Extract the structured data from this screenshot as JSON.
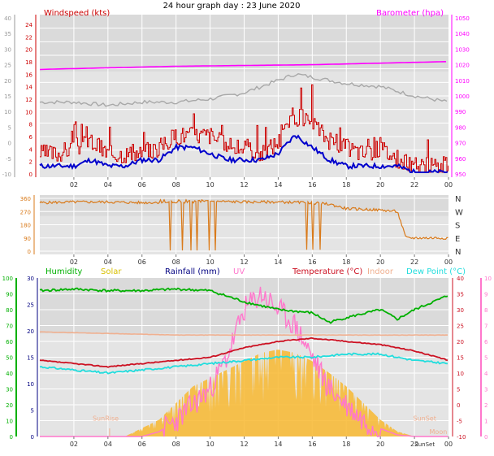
{
  "header": {
    "title": "24 hour graph day : 23 June 2020"
  },
  "colors": {
    "windspeed": "#cc0000",
    "windavg": "#0000cc",
    "barometer": "#ff00ff",
    "gust_grey": "#a8a8a8",
    "direction": "#d97a1a",
    "humidity": "#00b000",
    "solar": "#d8c000",
    "solar_fill": "#f8b830",
    "rainfall": "#000080",
    "uv": "#ff77cc",
    "temperature": "#cc1122",
    "indoor": "#f0b090",
    "dewpoint": "#22dddd",
    "grid_bg": "#e0e0e0"
  },
  "chart_data": [
    {
      "type": "line",
      "title": "24 hour graph day : 23 June 2020",
      "ylabel_left": "Windspeed (kts)",
      "ylabel_right": "Barometer (hpa)",
      "x_ticks": [
        "02",
        "04",
        "06",
        "08",
        "10",
        "12",
        "14",
        "16",
        "18",
        "20",
        "22",
        "00"
      ],
      "y_left_ticks": [
        "40",
        "35",
        "30",
        "25",
        "20",
        "15",
        "10",
        "5",
        "0",
        "-5",
        "-10"
      ],
      "y_left_inner_ticks": [
        "24",
        "22",
        "20",
        "18",
        "16",
        "14",
        "12",
        "10",
        "8",
        "6",
        "4",
        "2",
        "0"
      ],
      "y_right_ticks": [
        "1050",
        "1040",
        "1030",
        "1020",
        "1010",
        "1000",
        "990",
        "980",
        "970",
        "960",
        "950"
      ],
      "ylim_left": [
        0,
        24
      ],
      "ylim_right": [
        950,
        1050
      ],
      "series": [
        {
          "name": "Windspeed (kts)",
          "axis": "left",
          "x": [
            0,
            1,
            2,
            3,
            4,
            5,
            6,
            7,
            8,
            9,
            10,
            11,
            12,
            13,
            14,
            15,
            16,
            17,
            18,
            19,
            20,
            21,
            22,
            23,
            24
          ],
          "values": [
            3,
            3,
            4,
            5,
            3,
            3,
            3,
            4,
            6,
            6,
            6,
            4,
            4,
            3,
            5,
            9,
            8,
            5,
            4,
            3,
            4,
            2,
            1,
            1,
            1
          ]
        },
        {
          "name": "Wind average",
          "axis": "left",
          "x": [
            0,
            1,
            2,
            3,
            4,
            5,
            6,
            7,
            8,
            9,
            10,
            11,
            12,
            13,
            14,
            15,
            16,
            17,
            18,
            19,
            20,
            21,
            22,
            23,
            24
          ],
          "values": [
            1,
            1,
            1,
            2,
            1,
            1,
            2,
            2,
            4,
            4,
            3,
            2,
            2,
            2,
            3,
            6,
            4,
            2,
            1,
            1,
            1,
            1,
            0,
            0,
            0
          ]
        },
        {
          "name": "Barometer (hpa)",
          "axis": "right",
          "x": [
            0,
            4,
            8,
            12,
            16,
            20,
            24
          ],
          "values": [
            1017,
            1018,
            1019,
            1019.5,
            1020,
            1021,
            1022
          ]
        },
        {
          "name": "Wind gust avg",
          "axis": "left_outer",
          "x": [
            0,
            2,
            4,
            6,
            8,
            10,
            12,
            14,
            15,
            16,
            18,
            20,
            22,
            24
          ],
          "values": [
            13,
            13,
            12,
            13,
            13,
            14,
            16,
            20,
            22,
            21,
            19,
            18,
            15,
            13
          ]
        }
      ]
    },
    {
      "type": "line",
      "ylabel_right_ticks": [
        "N",
        "W",
        "S",
        "E",
        "N"
      ],
      "y_left_ticks": [
        "360",
        "270",
        "180",
        "90",
        "0"
      ],
      "x_ticks": [
        "02",
        "04",
        "06",
        "08",
        "10",
        "12",
        "14",
        "16",
        "18",
        "20",
        "22",
        "00"
      ],
      "ylim": [
        0,
        360
      ],
      "series": [
        {
          "name": "Wind direction",
          "x": [
            0,
            2,
            4,
            6,
            8,
            10,
            12,
            14,
            16,
            17,
            18,
            20,
            21,
            21.5,
            22,
            24
          ],
          "values": [
            330,
            335,
            335,
            330,
            335,
            340,
            335,
            335,
            330,
            320,
            290,
            280,
            270,
            90,
            90,
            90
          ]
        }
      ]
    },
    {
      "type": "line",
      "legend": [
        "Humidity",
        "Solar",
        "Rainfall (mm)",
        "UV",
        "Temperature (°C)",
        "Indoor",
        "Dew Point (°C)"
      ],
      "x_ticks": [
        "02",
        "04",
        "06",
        "08",
        "10",
        "12",
        "14",
        "16",
        "18",
        "20",
        "22",
        "00"
      ],
      "y_humidity_ticks": [
        "100",
        "90",
        "80",
        "70",
        "60",
        "50",
        "40",
        "30",
        "20",
        "10",
        "0"
      ],
      "y_rain_ticks": [
        "30",
        "25",
        "20",
        "15",
        "10",
        "5",
        "0"
      ],
      "y_temp_ticks": [
        "40",
        "35",
        "30",
        "25",
        "20",
        "15",
        "10",
        "5",
        "0",
        "-5",
        "-10"
      ],
      "y_uv_ticks": [
        "10",
        "9",
        "8",
        "7",
        "6",
        "5",
        "4",
        "3",
        "2",
        "1",
        "0"
      ],
      "annotations": [
        "SunRise",
        "SunSet",
        "Moon"
      ],
      "series": [
        {
          "name": "Humidity",
          "x": [
            0,
            2,
            4,
            6,
            8,
            10,
            12,
            14,
            16,
            17,
            18,
            20,
            21,
            22,
            24
          ],
          "values": [
            92,
            93,
            92,
            92,
            93,
            92,
            85,
            80,
            78,
            72,
            75,
            80,
            74,
            80,
            89
          ]
        },
        {
          "name": "Temperature (°C)",
          "x": [
            0,
            2,
            4,
            6,
            8,
            10,
            12,
            14,
            16,
            18,
            20,
            22,
            24
          ],
          "values": [
            14,
            13,
            12,
            13,
            14,
            15,
            18,
            20,
            21,
            20,
            19,
            17,
            14
          ]
        },
        {
          "name": "Dew Point (°C)",
          "x": [
            0,
            2,
            4,
            6,
            8,
            10,
            12,
            14,
            16,
            18,
            20,
            22,
            24
          ],
          "values": [
            12,
            11,
            10,
            11,
            12,
            13,
            14,
            15,
            15,
            16,
            16,
            14,
            13
          ]
        },
        {
          "name": "Indoor",
          "x": [
            0,
            4,
            8,
            12,
            14,
            16,
            18,
            20,
            24
          ],
          "values": [
            23,
            22.5,
            22,
            22,
            22,
            22,
            22,
            22,
            22
          ]
        },
        {
          "name": "Solar",
          "x": [
            0,
            5,
            6,
            7,
            8,
            9,
            10,
            11,
            12,
            13,
            14,
            15,
            16,
            17,
            18,
            19,
            20,
            21,
            22,
            24
          ],
          "values": [
            0,
            0,
            5,
            10,
            20,
            30,
            35,
            40,
            45,
            50,
            52,
            50,
            45,
            38,
            30,
            20,
            10,
            3,
            0,
            0
          ]
        },
        {
          "name": "UV",
          "x": [
            0,
            6,
            7,
            8,
            9,
            10,
            11,
            12,
            13,
            14,
            15,
            16,
            17,
            18,
            19,
            20,
            21,
            22,
            24
          ],
          "values": [
            0,
            0,
            0.3,
            1,
            2,
            3,
            5,
            8,
            9,
            8,
            7,
            5,
            3,
            2,
            1,
            0.5,
            0.1,
            0,
            0
          ]
        }
      ]
    }
  ]
}
